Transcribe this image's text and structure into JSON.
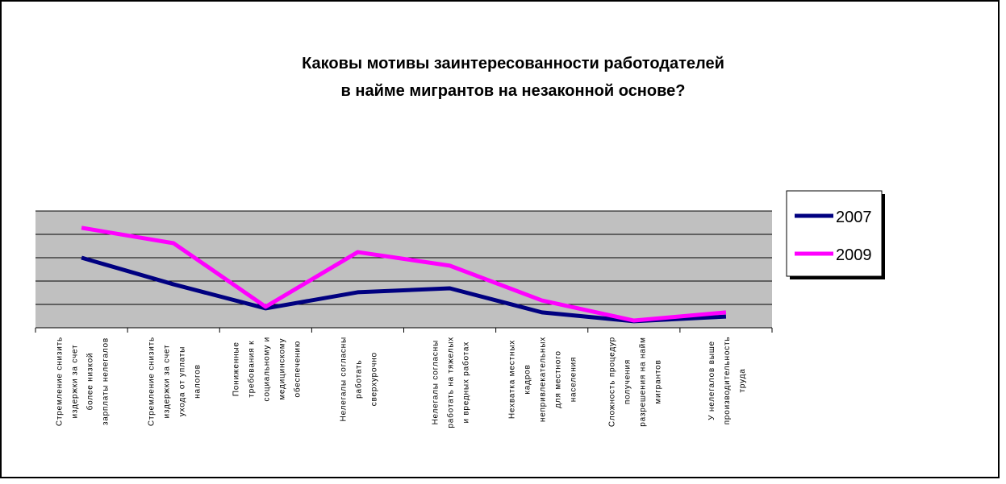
{
  "chart_data": {
    "type": "line",
    "title": [
      "Каковы мотивы заинтересованности работодателей",
      "в найме мигрантов на незаконной основе?"
    ],
    "categories": [
      "Стремление снизить\nиздержки за счет\nболее низкой\nзарплаты нелегалов",
      "Стремление снизить\nиздержки за счет\nухода от уплаты\nналогов",
      "Пониженные\nтребования к\nсоциальному и\nмедицинскому\nобеспечению",
      "Нелегалы согласны\nработать\nсверхурочно",
      "Нелегалы согласны\nработать на тяжелых\nи вредных работах",
      "Нехватка местных\nкадров\nнепривлекательных\nдля местного\nнаселения",
      "Сложность процедур\nполучения\nразрешения на найм\nмигрантов",
      "У нелегалов выше\nпроизводительность\nтруда"
    ],
    "series": [
      {
        "name": "2007",
        "color": "#000080",
        "values": [
          3.0,
          1.86,
          0.83,
          1.52,
          1.69,
          0.66,
          0.28,
          0.48
        ]
      },
      {
        "name": "2009",
        "color": "#ff00ff",
        "values": [
          4.28,
          3.62,
          0.9,
          3.24,
          2.66,
          1.17,
          0.31,
          0.66
        ]
      }
    ],
    "ylim": [
      0,
      5
    ],
    "yticks": [
      0,
      1,
      2,
      3,
      4,
      5
    ],
    "grid": true,
    "legend": "right"
  }
}
